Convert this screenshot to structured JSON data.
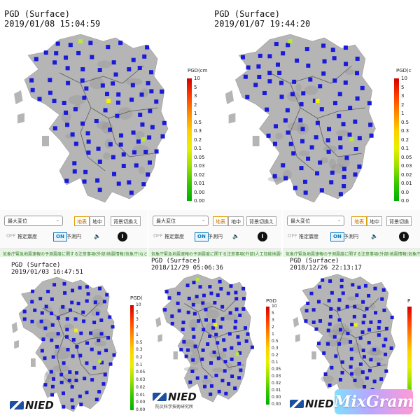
{
  "panels": [
    {
      "id": "p1",
      "title": "PGD (Surface)",
      "timestamp": "2019/01/08 15:04:59",
      "scale_header": "PGD(cm",
      "scale_labels": [
        "10",
        "5",
        "3",
        "2",
        "1",
        "0.5",
        "0.3",
        "0.2",
        "0.1",
        "0.05",
        "0.03",
        "0.02",
        "0.01",
        "0.00",
        "0.00"
      ],
      "has_toolbar": false,
      "highlights": [
        "yellow",
        "yellow-green",
        "yellow-green"
      ]
    },
    {
      "id": "p2",
      "title": "PGD (Surface)",
      "timestamp": "2019/01/07 19:44:20",
      "scale_header": "PGD(c",
      "scale_labels": [
        "10",
        "5",
        "3",
        "2",
        "1",
        "0.5",
        "0.3",
        "0.2",
        "0.1",
        "0.05",
        "0.03",
        "0.02",
        "0.01",
        "0.0",
        "0.0"
      ],
      "has_toolbar": false,
      "highlights": [
        "yellow",
        "yellow-green",
        "yellow-green"
      ]
    },
    {
      "id": "p3",
      "title": "PGD (Surface)",
      "timestamp": "2019/01/03 16:47:51",
      "scale_header": "PGD(",
      "scale_labels": [
        "10",
        "5",
        "3",
        "2",
        "1",
        "0.5",
        "0.3",
        "0.2",
        "0.1",
        "0.05",
        "0.03",
        "0.02",
        "0.01",
        "0.00",
        "0.00"
      ],
      "has_toolbar": true,
      "toolbar": {
        "select_label": "最大変位",
        "btn_1": "地表",
        "btn_2": "地中",
        "btn_3": "背景切換え",
        "toggle_off": "OFF",
        "toggle_off_label": "推定震度",
        "toggle_on": "ON",
        "toggle_on_label": "予測円",
        "ticker": "気象庁緊急地震速報の予測震度に関する注意事項(外部)地震情報(気象庁)など"
      },
      "logo": "NIED",
      "highlights": [
        "yellow",
        "yellow-green"
      ]
    },
    {
      "id": "p4",
      "title": "PGD (Surface)",
      "timestamp": "2018/12/29 05:06:36",
      "scale_header": "PGD",
      "scale_labels": [
        "10",
        "5",
        "3",
        "2",
        "1",
        "0.5",
        "0.3",
        "0.2",
        "0.1",
        "0.05",
        "0.03",
        "0.02",
        "0.01",
        "0.00",
        "0.00"
      ],
      "has_toolbar": true,
      "toolbar": {
        "select_label": "最大変位",
        "btn_1": "地表",
        "btn_2": "地中",
        "btn_3": "背景切換え",
        "toggle_off": "OFF",
        "toggle_off_label": "推定震度",
        "toggle_on": "ON",
        "toggle_on_label": "予測円",
        "ticker": "気象庁緊急地震速報の予測震度に関する注意事項(外部)人工知能地震情報(気象"
      },
      "logo": "NIED",
      "logo_sub": "防災科学技術研究所",
      "highlights": [
        "yellow",
        "yellow-green",
        "yellow-green"
      ]
    },
    {
      "id": "p5",
      "title": "PGD (Surface)",
      "timestamp": "2018/12/26 22:13:17",
      "scale_header": "P",
      "scale_labels": [],
      "has_toolbar": true,
      "toolbar": {
        "select_label": "最大変位",
        "btn_1": "地表",
        "btn_2": "地中",
        "btn_3": "背景切換",
        "toggle_off": "OFF",
        "toggle_off_label": "推定震度",
        "toggle_on": "ON",
        "toggle_on_label": "予測円",
        "ticker": "気象庁緊急地震速報の予測震度に関する注意事項(外部)地震情報(気象庁)"
      },
      "logo": "NIED",
      "highlights": [
        "yellow"
      ]
    }
  ],
  "watermark": "MixGram",
  "colors": {
    "station": "#1a1adb",
    "land": "#b5b5b5",
    "sea": "#ffffff",
    "yellow": "#f2f200",
    "yellow_green": "#b8e83a"
  }
}
